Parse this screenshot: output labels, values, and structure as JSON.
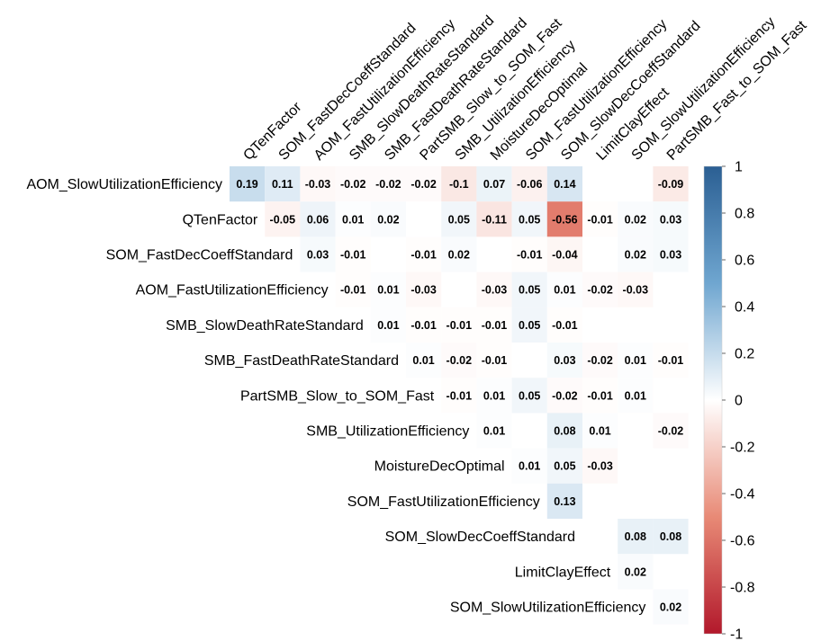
{
  "chart_data": {
    "type": "heatmap",
    "subtype": "upper-triangle correlation matrix",
    "rows": [
      "AOM_SlowUtilizationEfficiency",
      "QTenFactor",
      "SOM_FastDecCoeffStandard",
      "AOM_FastUtilizationEfficiency",
      "SMB_SlowDeathRateStandard",
      "SMB_FastDeathRateStandard",
      "PartSMB_Slow_to_SOM_Fast",
      "SMB_UtilizationEfficiency",
      "MoistureDecOptimal",
      "SOM_FastUtilizationEfficiency",
      "SOM_SlowDecCoeffStandard",
      "LimitClayEffect",
      "SOM_SlowUtilizationEfficiency"
    ],
    "columns": [
      "QTenFactor",
      "SOM_FastDecCoeffStandard",
      "AOM_FastUtilizationEfficiency",
      "SMB_SlowDeathRateStandard",
      "SMB_FastDeathRateStandard",
      "PartSMB_Slow_to_SOM_Fast",
      "SMB_UtilizationEfficiency",
      "MoistureDecOptimal",
      "SOM_FastUtilizationEfficiency",
      "SOM_SlowDecCoeffStandard",
      "LimitClayEffect",
      "SOM_SlowUtilizationEfficiency",
      "PartSMB_Fast_to_SOM_Fast"
    ],
    "values": [
      [
        0.19,
        0.11,
        -0.03,
        -0.02,
        -0.02,
        -0.02,
        -0.1,
        0.07,
        -0.06,
        0.14,
        null,
        null,
        -0.09
      ],
      [
        null,
        -0.05,
        0.06,
        0.01,
        0.02,
        null,
        0.05,
        -0.11,
        0.05,
        -0.56,
        -0.01,
        0.02,
        0.03
      ],
      [
        null,
        null,
        0.03,
        -0.01,
        null,
        -0.01,
        0.02,
        null,
        -0.01,
        -0.04,
        null,
        0.02,
        0.03
      ],
      [
        null,
        null,
        null,
        -0.01,
        0.01,
        -0.03,
        null,
        -0.03,
        0.05,
        0.01,
        -0.02,
        -0.03,
        null
      ],
      [
        null,
        null,
        null,
        null,
        0.01,
        -0.01,
        -0.01,
        -0.01,
        0.05,
        -0.01,
        null,
        null,
        null
      ],
      [
        null,
        null,
        null,
        null,
        null,
        0.01,
        -0.02,
        -0.01,
        null,
        0.03,
        -0.02,
        0.01,
        -0.01
      ],
      [
        null,
        null,
        null,
        null,
        null,
        null,
        -0.01,
        0.01,
        0.05,
        -0.02,
        -0.01,
        0.01,
        null
      ],
      [
        null,
        null,
        null,
        null,
        null,
        null,
        null,
        0.01,
        null,
        0.08,
        0.01,
        null,
        -0.02
      ],
      [
        null,
        null,
        null,
        null,
        null,
        null,
        null,
        null,
        0.01,
        0.05,
        -0.03,
        null,
        null
      ],
      [
        null,
        null,
        null,
        null,
        null,
        null,
        null,
        null,
        null,
        0.13,
        null,
        null,
        null
      ],
      [
        null,
        null,
        null,
        null,
        null,
        null,
        null,
        null,
        null,
        null,
        null,
        0.08,
        0.08
      ],
      [
        null,
        null,
        null,
        null,
        null,
        null,
        null,
        null,
        null,
        null,
        null,
        0.02,
        null
      ],
      [
        null,
        null,
        null,
        null,
        null,
        null,
        null,
        null,
        null,
        null,
        null,
        null,
        0.02
      ]
    ],
    "colorbar": {
      "range": [
        -1,
        1
      ],
      "ticks": [
        "1",
        "0.8",
        "0.6",
        "0.4",
        "0.2",
        "0",
        "-0.2",
        "-0.4",
        "-0.6",
        "-0.8",
        "-1"
      ],
      "colors": {
        "neg_strong": "#67001f",
        "neg": "#d6604d",
        "neg_light": "#fddbc7",
        "zero": "#ffffff",
        "pos_light": "#d1e5f0",
        "pos": "#4393c3",
        "pos_strong": "#2166ac"
      },
      "placement": "right"
    },
    "grid": false
  }
}
